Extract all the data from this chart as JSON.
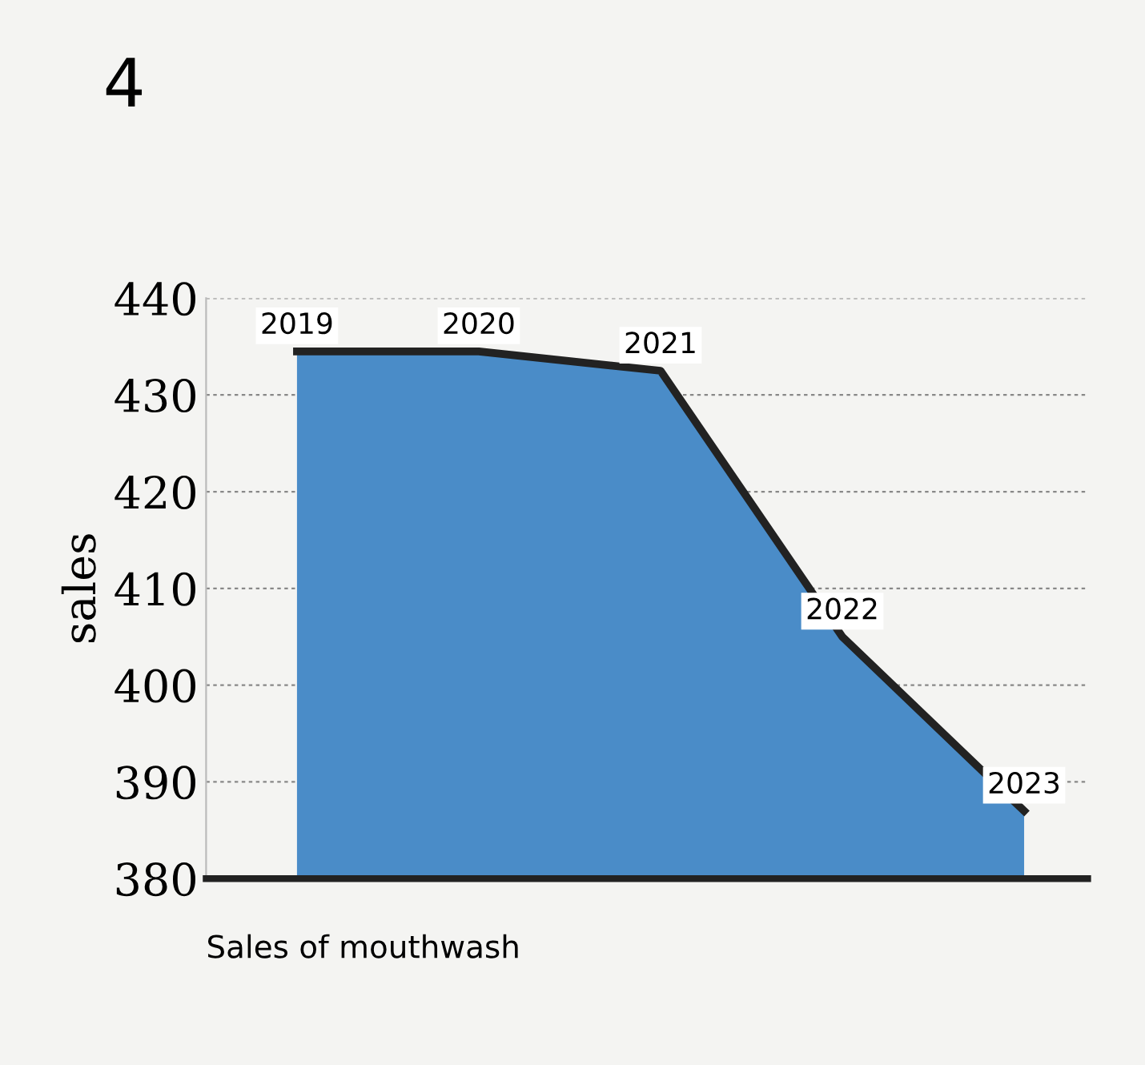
{
  "chart_data": {
    "type": "area",
    "title": "4",
    "xlabel": "Sales of mouthwash",
    "ylabel": "sales",
    "categories": [
      "2019",
      "2020",
      "2021",
      "2022",
      "2023"
    ],
    "series": [
      {
        "color": "#4a8cc8",
        "values": [
          434.5,
          434.5,
          432.5,
          405,
          387
        ]
      }
    ],
    "ylim": [
      380,
      440
    ],
    "yticks": [
      380,
      390,
      400,
      410,
      420,
      430,
      440
    ],
    "grid": "y",
    "legend": false
  }
}
